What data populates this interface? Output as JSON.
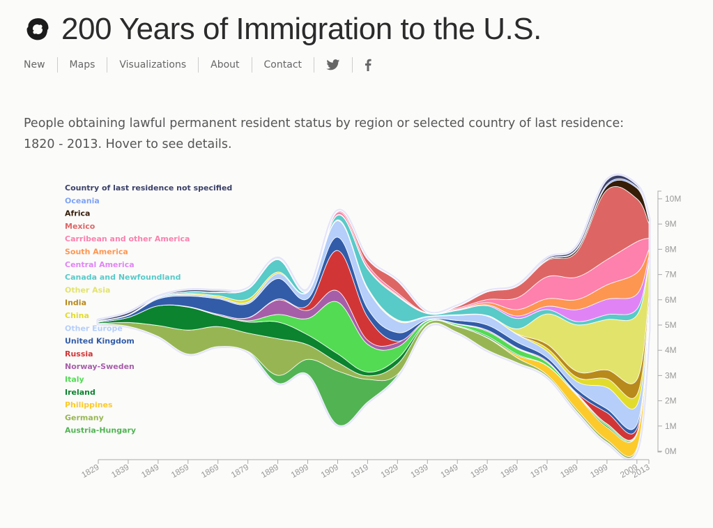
{
  "header": {
    "title": "200 Years of Immigration to the U.S.",
    "logo_icon": "linked-circles-logo-icon"
  },
  "nav": {
    "items": [
      {
        "label": "New"
      },
      {
        "label": "Maps"
      },
      {
        "label": "Visualizations"
      },
      {
        "label": "About"
      },
      {
        "label": "Contact"
      }
    ],
    "social": [
      {
        "name": "twitter-icon"
      },
      {
        "name": "facebook-icon"
      }
    ]
  },
  "description": {
    "line1": "People obtaining lawful permanent resident status by region or selected country of last residence:",
    "line2": "1820 - 2013. Hover to see details."
  },
  "chart_data": {
    "type": "area",
    "subtype": "streamgraph",
    "title": "People obtaining lawful permanent resident status by region or selected country of last residence: 1820 - 2013",
    "xlabel": "",
    "ylabel": "",
    "x": [
      1829,
      1839,
      1849,
      1859,
      1869,
      1879,
      1889,
      1899,
      1909,
      1919,
      1929,
      1939,
      1949,
      1959,
      1969,
      1979,
      1989,
      1999,
      2009,
      2013
    ],
    "x_ticks": [
      "1829",
      "1839",
      "1849",
      "1859",
      "1869",
      "1879",
      "1889",
      "1899",
      "1909",
      "1919",
      "1929",
      "1939",
      "1949",
      "1959",
      "1969",
      "1979",
      "1989",
      "1999",
      "2009",
      "2013"
    ],
    "y_ticks": [
      "0M",
      "1M",
      "2M",
      "3M",
      "4M",
      "5M",
      "6M",
      "7M",
      "8M",
      "9M",
      "10M"
    ],
    "ylim": [
      0,
      10.4
    ],
    "y_units": "millions",
    "legend_position": "left",
    "baseline": [
      5.05,
      4.95,
      4.55,
      3.85,
      4.15,
      3.95,
      2.7,
      3.05,
      1.05,
      1.95,
      3.0,
      4.95,
      4.7,
      4.0,
      3.5,
      2.95,
      1.55,
      0.35,
      0.05,
      4.8
    ],
    "series": [
      {
        "name": "Austria-Hungary",
        "color": "#52b353",
        "values": [
          0,
          0,
          0,
          0,
          0,
          0.01,
          0.31,
          0.59,
          2.13,
          0.9,
          0.05,
          0.02,
          0.01,
          0.01,
          0.01,
          0.01,
          0.01,
          0.01,
          0.01,
          0.01
        ]
      },
      {
        "name": "Germany",
        "color": "#97b653",
        "values": [
          0.01,
          0.15,
          0.43,
          0.95,
          0.79,
          0.72,
          1.45,
          0.58,
          0.34,
          0.14,
          0.41,
          0.11,
          0.23,
          0.48,
          0.19,
          0.07,
          0.09,
          0.09,
          0.06,
          0.03
        ]
      },
      {
        "name": "Philippines",
        "color": "#fdca2c",
        "values": [
          0,
          0,
          0,
          0,
          0,
          0,
          0,
          0,
          0,
          0,
          0,
          0.01,
          0.01,
          0.02,
          0.1,
          0.35,
          0.55,
          0.5,
          0.55,
          0.25
        ]
      },
      {
        "name": "Ireland",
        "color": "#0c832e",
        "values": [
          0.05,
          0.2,
          0.78,
          0.91,
          0.44,
          0.44,
          0.66,
          0.39,
          0.34,
          0.15,
          0.21,
          0.01,
          0.02,
          0.05,
          0.04,
          0.01,
          0.03,
          0.06,
          0.02,
          0.01
        ]
      },
      {
        "name": "Italy",
        "color": "#52db53",
        "values": [
          0,
          0,
          0,
          0.01,
          0.01,
          0.05,
          0.3,
          0.65,
          2.05,
          1.1,
          0.46,
          0.07,
          0.06,
          0.19,
          0.21,
          0.13,
          0.03,
          0.07,
          0.03,
          0.01
        ]
      },
      {
        "name": "Norway-Sweden",
        "color": "#a75ea9",
        "values": [
          0,
          0,
          0,
          0.01,
          0.04,
          0.11,
          0.57,
          0.32,
          0.44,
          0.16,
          0.17,
          0.01,
          0.01,
          0.04,
          0.03,
          0.01,
          0.01,
          0.01,
          0.01,
          0.01
        ]
      },
      {
        "name": "Russia",
        "color": "#d23536",
        "values": [
          0,
          0,
          0,
          0,
          0,
          0.01,
          0.04,
          0.2,
          1.6,
          0.92,
          0.06,
          0.01,
          0.01,
          0.01,
          0.02,
          0.04,
          0.03,
          0.44,
          0.17,
          0.07
        ]
      },
      {
        "name": "United Kingdom",
        "color": "#325ca8",
        "values": [
          0.03,
          0.08,
          0.27,
          0.42,
          0.61,
          0.55,
          0.81,
          0.27,
          0.53,
          0.34,
          0.34,
          0.03,
          0.13,
          0.2,
          0.22,
          0.14,
          0.16,
          0.15,
          0.17,
          0.05
        ]
      },
      {
        "name": "Other Europe",
        "color": "#b5cefa",
        "values": [
          0.01,
          0.02,
          0.05,
          0.06,
          0.06,
          0.07,
          0.2,
          0.25,
          0.65,
          0.75,
          0.45,
          0.1,
          0.2,
          0.35,
          0.3,
          0.25,
          0.3,
          0.85,
          0.75,
          0.3
        ]
      },
      {
        "name": "China",
        "color": "#e2dc2d",
        "values": [
          0,
          0,
          0,
          0.04,
          0.06,
          0.12,
          0.06,
          0.01,
          0.02,
          0.02,
          0.03,
          0.01,
          0.01,
          0.01,
          0.01,
          0.12,
          0.17,
          0.34,
          0.42,
          0.29
        ]
      },
      {
        "name": "India",
        "color": "#b8891b",
        "values": [
          0,
          0,
          0,
          0,
          0,
          0,
          0,
          0,
          0,
          0,
          0,
          0,
          0,
          0,
          0.02,
          0.16,
          0.23,
          0.35,
          0.6,
          0.3
        ]
      },
      {
        "name": "Other Asia",
        "color": "#e2e36b",
        "values": [
          0,
          0,
          0,
          0,
          0,
          0,
          0,
          0.01,
          0.02,
          0.05,
          0.03,
          0.01,
          0.02,
          0.02,
          0.2,
          1.2,
          1.85,
          2.0,
          2.55,
          1.3
        ]
      },
      {
        "name": "Canada and Newfoundland",
        "color": "#58cac8",
        "values": [
          0.01,
          0.01,
          0.03,
          0.06,
          0.13,
          0.39,
          0.49,
          0.01,
          0.18,
          0.74,
          0.92,
          0.11,
          0.17,
          0.38,
          0.41,
          0.17,
          0.13,
          0.19,
          0.24,
          0.08
        ]
      },
      {
        "name": "Central America",
        "color": "#e084f5",
        "values": [
          0,
          0,
          0,
          0,
          0,
          0,
          0,
          0,
          0,
          0,
          0.02,
          0.01,
          0.02,
          0.04,
          0.1,
          0.13,
          0.47,
          0.61,
          0.59,
          0.2
        ]
      },
      {
        "name": "South America",
        "color": "#fd9650",
        "values": [
          0,
          0,
          0,
          0,
          0,
          0,
          0,
          0,
          0.02,
          0.04,
          0.04,
          0.01,
          0.02,
          0.09,
          0.25,
          0.3,
          0.4,
          0.57,
          0.85,
          0.28
        ]
      },
      {
        "name": "Carribean and other America",
        "color": "#fd80ad",
        "values": [
          0,
          0,
          0,
          0.01,
          0.01,
          0.01,
          0.03,
          0.03,
          0.1,
          0.12,
          0.08,
          0.01,
          0.05,
          0.12,
          0.47,
          0.87,
          0.89,
          1.0,
          1.23,
          0.45
        ]
      },
      {
        "name": "Mexico",
        "color": "#dd6665",
        "values": [
          0,
          0,
          0,
          0,
          0,
          0,
          0,
          0,
          0.03,
          0.22,
          0.46,
          0.02,
          0.06,
          0.3,
          0.45,
          0.64,
          1.01,
          2.76,
          1.7,
          0.58
        ]
      },
      {
        "name": "Africa",
        "color": "#351d08",
        "values": [
          0,
          0,
          0,
          0,
          0,
          0,
          0,
          0,
          0,
          0.01,
          0.01,
          0,
          0.01,
          0.01,
          0.01,
          0.03,
          0.08,
          0.16,
          0.42,
          0.15
        ]
      },
      {
        "name": "Oceania",
        "color": "#7ea3f5",
        "values": [
          0,
          0,
          0,
          0,
          0.01,
          0.01,
          0.01,
          0.01,
          0.01,
          0.01,
          0.01,
          0,
          0.01,
          0.01,
          0.01,
          0.02,
          0.04,
          0.06,
          0.05,
          0.02
        ]
      },
      {
        "name": "Country of last residence not specified",
        "color": "#3b4168",
        "values": [
          0.03,
          0.07,
          0.01,
          0.06,
          0.05,
          0,
          0.01,
          0.02,
          0,
          0,
          0,
          0,
          0,
          0,
          0.01,
          0.04,
          0.08,
          0.16,
          0.06,
          0.02
        ]
      }
    ],
    "legend_order": [
      "Country of last residence not specified",
      "Oceania",
      "Africa",
      "Mexico",
      "Carribean and other America",
      "South America",
      "Central America",
      "Canada and Newfoundland",
      "Other Asia",
      "India",
      "China",
      "Other Europe",
      "United Kingdom",
      "Russia",
      "Norway-Sweden",
      "Italy",
      "Ireland",
      "Philippines",
      "Germany",
      "Austria-Hungary"
    ]
  }
}
